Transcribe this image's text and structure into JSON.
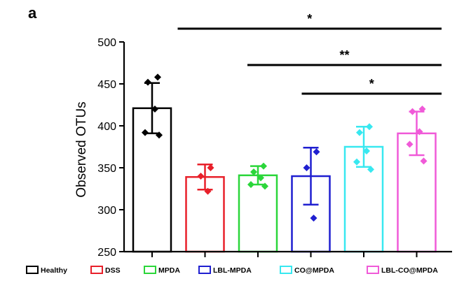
{
  "panel_label": "a",
  "chart_data": {
    "type": "bar",
    "ylabel": "Observed OTUs",
    "ylim": [
      250,
      500
    ],
    "yticks": [
      "250",
      "300",
      "350",
      "400",
      "450",
      "500"
    ],
    "legend_position": "bottom",
    "categories": [
      "Healthy",
      "DSS",
      "MPDA",
      "LBL-MPDA",
      "CO@MPDA",
      "LBL-CO@MPDA"
    ],
    "colors": [
      "#000000",
      "#e8202a",
      "#2bd63a",
      "#1f1fd0",
      "#38e8f0",
      "#f05ad8"
    ],
    "values": [
      421,
      339,
      341,
      340,
      375,
      391
    ],
    "error": [
      30,
      15,
      11,
      34,
      24,
      26
    ],
    "points": [
      [
        458,
        452,
        420,
        392,
        389
      ],
      [
        350,
        340,
        322
      ],
      [
        352,
        345,
        338,
        330,
        328
      ],
      [
        369,
        350,
        290
      ],
      [
        399,
        392,
        370,
        357,
        348
      ],
      [
        420,
        417,
        393,
        378,
        358
      ]
    ],
    "significance": [
      {
        "from": 1,
        "to": 5,
        "label": "*"
      },
      {
        "from": 2,
        "to": 5,
        "label": "**"
      },
      {
        "from": 3,
        "to": 5,
        "label": "*"
      }
    ]
  }
}
